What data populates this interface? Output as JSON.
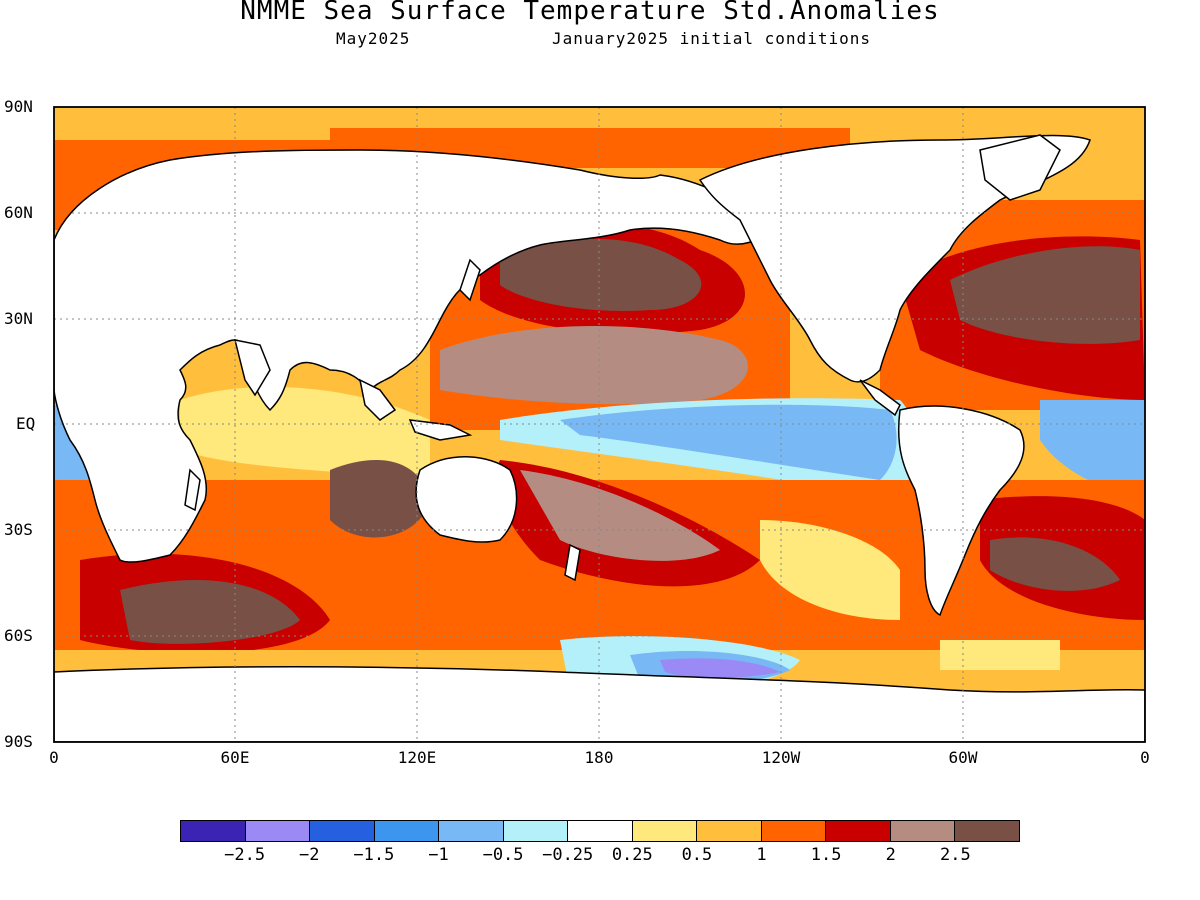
{
  "header": {
    "title": "NMME Sea Surface Temperature Std.Anomalies",
    "valid_month": "May2025",
    "initial_conditions": "January2025 initial conditions"
  },
  "axes": {
    "lat_labels": [
      "90N",
      "60N",
      "30N",
      "EQ",
      "30S",
      "60S",
      "90S"
    ],
    "lon_labels": [
      "0",
      "60E",
      "120E",
      "180",
      "120W",
      "60W",
      "0"
    ]
  },
  "colorbar": {
    "colors": [
      "#3b24b4",
      "#9b8af5",
      "#2460e0",
      "#3c96f0",
      "#78b8f4",
      "#b4f0fa",
      "#ffffff",
      "#ffe87c",
      "#ffbe3c",
      "#ff6400",
      "#c80000",
      "#b48c82",
      "#785046"
    ],
    "labels": [
      "−2.5",
      "−2",
      "−1.5",
      "−1",
      "−0.5",
      "−0.25",
      "0.25",
      "0.5",
      "1",
      "1.5",
      "2",
      "2.5"
    ]
  }
}
